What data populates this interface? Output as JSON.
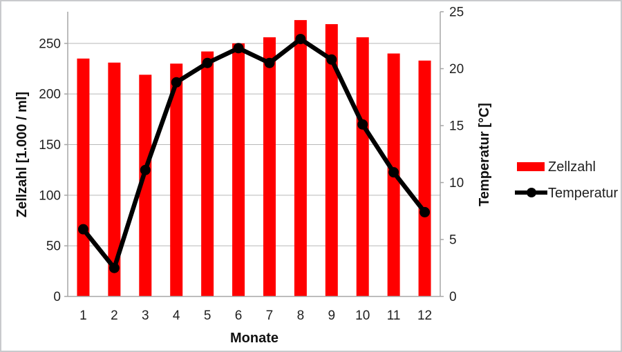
{
  "chart_data": {
    "type": "bar",
    "subtype": "combo-bar-line-dual-axis",
    "title": "",
    "xlabel": "Monate",
    "ylabel_left": "Zellzahl [1.000 / ml]",
    "ylabel_right": "Temperatur [°C]",
    "categories": [
      "1",
      "2",
      "3",
      "4",
      "5",
      "6",
      "7",
      "8",
      "9",
      "10",
      "11",
      "12"
    ],
    "series": [
      {
        "name": "Zellzahl",
        "type": "bar",
        "axis": "left",
        "color": "#ff0000",
        "values": [
          235,
          231,
          219,
          230,
          242,
          250,
          256,
          273,
          269,
          256,
          240,
          233
        ]
      },
      {
        "name": "Temperatur",
        "type": "line",
        "axis": "right",
        "color": "#000000",
        "values": [
          5.9,
          2.5,
          11.1,
          18.8,
          20.5,
          21.8,
          20.5,
          22.6,
          20.8,
          15.1,
          10.9,
          7.4
        ]
      }
    ],
    "left_axis": {
      "min": 0,
      "max": 281.25,
      "ticks": [
        0,
        50,
        100,
        150,
        200,
        250
      ]
    },
    "right_axis": {
      "min": 0,
      "max": 25,
      "ticks": [
        0,
        5,
        10,
        15,
        20,
        25
      ]
    },
    "grid": true,
    "legend_position": "right"
  },
  "colors": {
    "bar": "#ff0000",
    "line": "#000000",
    "gridline": "#b7b7b7",
    "axis_line": "#a6a6a6",
    "text": "#1f1f1f",
    "frame_border": "#c9cacd",
    "background": "#ffffff"
  }
}
